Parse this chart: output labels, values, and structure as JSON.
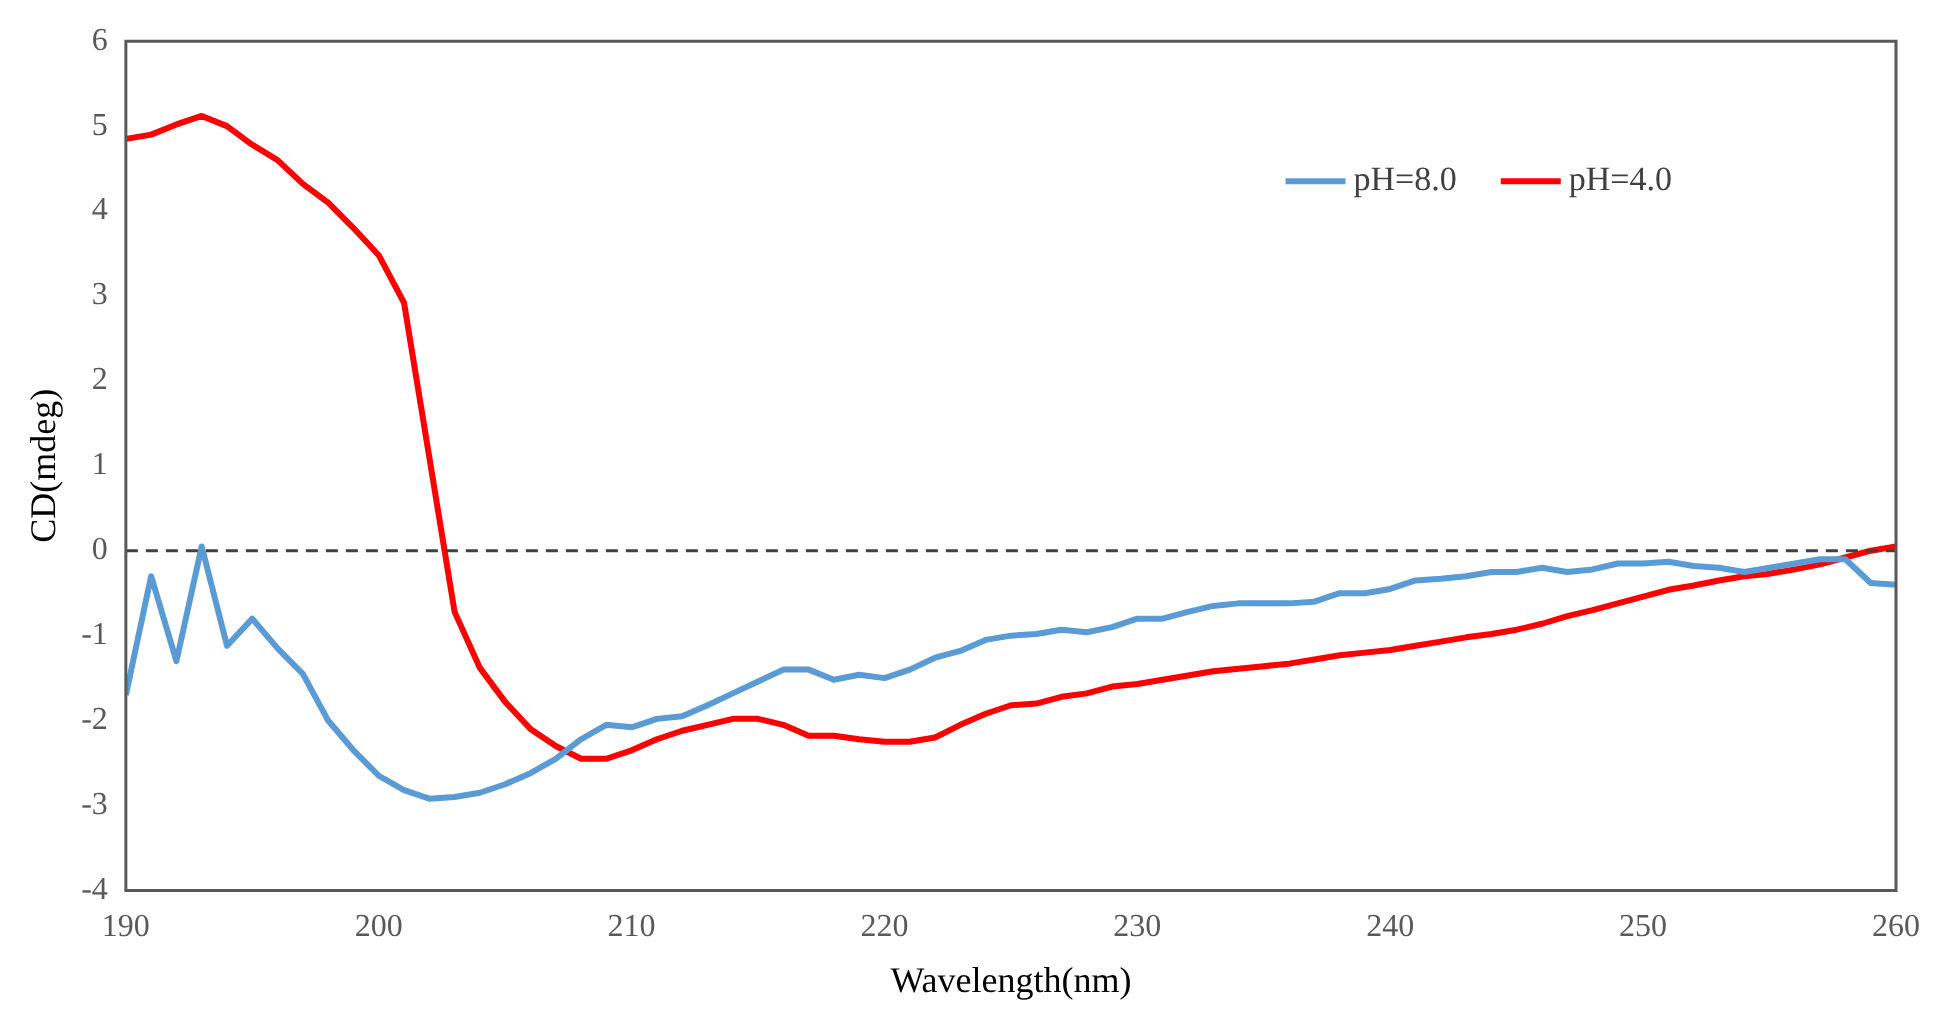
{
  "chart_data": {
    "type": "line",
    "xlabel": "Wavelength(nm)",
    "ylabel": "CD(mdeg)",
    "x": [
      190,
      191,
      192,
      193,
      194,
      195,
      196,
      197,
      198,
      199,
      200,
      201,
      202,
      203,
      204,
      205,
      206,
      207,
      208,
      209,
      210,
      211,
      212,
      213,
      214,
      215,
      216,
      217,
      218,
      219,
      220,
      221,
      222,
      223,
      224,
      225,
      226,
      227,
      228,
      229,
      230,
      231,
      232,
      233,
      234,
      235,
      236,
      237,
      238,
      239,
      240,
      241,
      242,
      243,
      244,
      245,
      246,
      247,
      248,
      249,
      250,
      251,
      252,
      253,
      254,
      255,
      256,
      257,
      258,
      259,
      260
    ],
    "series": [
      {
        "name": "pH=8.0",
        "color": "#5b9bd5",
        "values": [
          -1.7,
          -0.3,
          -1.3,
          0.05,
          -1.12,
          -0.8,
          -1.15,
          -1.45,
          -2.0,
          -2.35,
          -2.65,
          -2.82,
          -2.92,
          -2.9,
          -2.85,
          -2.75,
          -2.62,
          -2.45,
          -2.22,
          -2.05,
          -2.08,
          -1.98,
          -1.95,
          -1.82,
          -1.68,
          -1.54,
          -1.4,
          -1.4,
          -1.52,
          -1.46,
          -1.5,
          -1.4,
          -1.26,
          -1.18,
          -1.05,
          -1.0,
          -0.98,
          -0.93,
          -0.96,
          -0.9,
          -0.8,
          -0.8,
          -0.72,
          -0.65,
          -0.62,
          -0.62,
          -0.62,
          -0.6,
          -0.5,
          -0.5,
          -0.45,
          -0.35,
          -0.33,
          -0.3,
          -0.25,
          -0.25,
          -0.2,
          -0.25,
          -0.22,
          -0.15,
          -0.15,
          -0.13,
          -0.18,
          -0.2,
          -0.25,
          -0.2,
          -0.15,
          -0.1,
          -0.1,
          -0.38,
          -0.4
        ]
      },
      {
        "name": "pH=4.0",
        "color": "#ff0000",
        "values": [
          4.85,
          4.9,
          5.02,
          5.12,
          5.0,
          4.78,
          4.6,
          4.32,
          4.1,
          3.8,
          3.48,
          2.92,
          1.1,
          -0.72,
          -1.38,
          -1.78,
          -2.1,
          -2.3,
          -2.45,
          -2.45,
          -2.35,
          -2.22,
          -2.12,
          -2.05,
          -1.98,
          -1.98,
          -2.05,
          -2.18,
          -2.18,
          -2.22,
          -2.25,
          -2.25,
          -2.2,
          -2.05,
          -1.92,
          -1.82,
          -1.8,
          -1.72,
          -1.68,
          -1.6,
          -1.57,
          -1.52,
          -1.47,
          -1.42,
          -1.39,
          -1.36,
          -1.33,
          -1.28,
          -1.23,
          -1.2,
          -1.17,
          -1.12,
          -1.07,
          -1.02,
          -0.98,
          -0.93,
          -0.86,
          -0.77,
          -0.7,
          -0.62,
          -0.54,
          -0.46,
          -0.41,
          -0.35,
          -0.3,
          -0.27,
          -0.22,
          -0.16,
          -0.08,
          0.0,
          0.05
        ]
      }
    ],
    "xlim": [
      190,
      260
    ],
    "xticks": [
      190,
      200,
      210,
      220,
      230,
      240,
      250,
      260
    ],
    "ylim": [
      -4,
      6
    ],
    "yticks": [
      -4,
      -3,
      -2,
      -1,
      0,
      1,
      2,
      3,
      4,
      5,
      6
    ],
    "ref_lines": [
      {
        "axis": "y",
        "value": 0,
        "color": "#404040",
        "line_style": "dashed"
      }
    ],
    "grid": false,
    "legend": "top right",
    "marker": "none",
    "line_style": "solid"
  }
}
